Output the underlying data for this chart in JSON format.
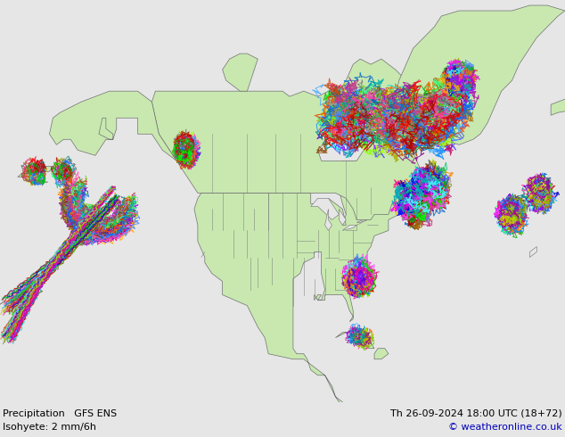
{
  "title_left": "Precipitation   GFS ENS",
  "title_right": "Th 26-09-2024 18:00 UTC (18+72)",
  "subtitle_left": "Isohyete: 2 mm/6h",
  "subtitle_right": "© weatheronline.co.uk",
  "bg_color": "#e6e6e6",
  "land_color": "#c8e8b0",
  "border_color": "#707070",
  "text_color": "#000000",
  "blue_text_color": "#0000bb",
  "figsize": [
    6.34,
    4.9
  ],
  "dpi": 100
}
